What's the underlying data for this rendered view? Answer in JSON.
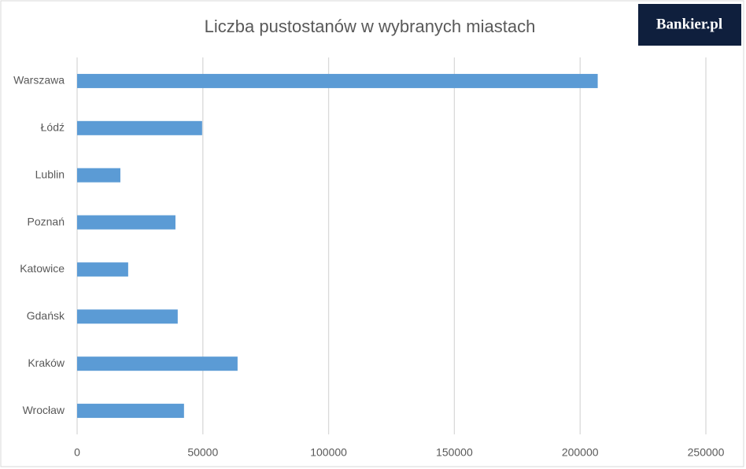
{
  "chart_data": {
    "type": "hbar",
    "title": "Liczba pustostanów w wybranych miastach",
    "logo": "Bankier.pl",
    "categories": [
      "Warszawa",
      "Łódź",
      "Lublin",
      "Poznań",
      "Katowice",
      "Gdańsk",
      "Kraków",
      "Wrocław"
    ],
    "values": [
      207000,
      49700,
      17200,
      39100,
      20300,
      40000,
      63800,
      42500
    ],
    "color": "#5b9bd5",
    "xlim": [
      0,
      250000
    ],
    "xticks": [
      0,
      50000,
      100000,
      150000,
      200000,
      250000
    ],
    "grid": true
  }
}
